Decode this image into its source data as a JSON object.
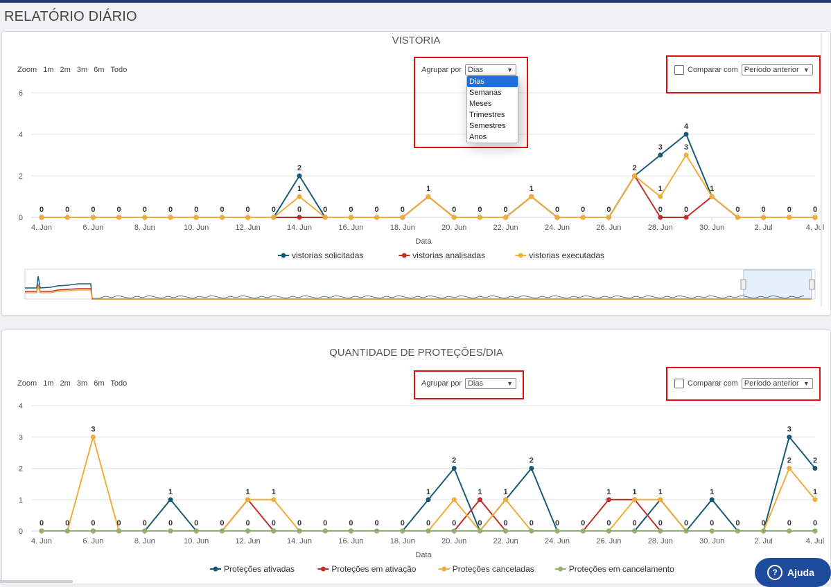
{
  "page": {
    "title": "RELATÓRIO DIÁRIO"
  },
  "colors": {
    "blue": "#175a75",
    "red": "#c0302b",
    "orange": "#f0ad3a",
    "green": "#8fb36f",
    "highlight": "#e01010",
    "help": "#1e4b9c"
  },
  "zoom": {
    "label": "Zoom",
    "buttons": [
      "1m",
      "2m",
      "3m",
      "6m",
      "Todo"
    ]
  },
  "group": {
    "label": "Agrupar por",
    "value": "Dias",
    "options": [
      "Dias",
      "Semanas",
      "Meses",
      "Trimestres",
      "Semestres",
      "Anos"
    ]
  },
  "compare": {
    "label": "Comparar com",
    "value": "Período anterior"
  },
  "help": {
    "label": "Ajuda",
    "icon": "question-circle-icon"
  },
  "chart_data": [
    {
      "type": "line",
      "title": "VISTORIA",
      "xlabel": "Data",
      "ylabel": "",
      "ylim": [
        0,
        6
      ],
      "yticks": [
        "0",
        "2",
        "4",
        "6"
      ],
      "xticks": [
        "4. Jun",
        "6. Jun",
        "8. Jun",
        "10. Jun",
        "12. Jun",
        "14. Jun",
        "16. Jun",
        "18. Jun",
        "20. Jun",
        "22. Jun",
        "24. Jun",
        "26. Jun",
        "28. Jun",
        "30. Jun",
        "2. Jul",
        "4. Jul"
      ],
      "x": [
        "4. Jun",
        "5. Jun",
        "6. Jun",
        "7. Jun",
        "8. Jun",
        "9. Jun",
        "10. Jun",
        "11. Jun",
        "12. Jun",
        "13. Jun",
        "14. Jun",
        "15. Jun",
        "16. Jun",
        "17. Jun",
        "18. Jun",
        "19. Jun",
        "20. Jun",
        "21. Jun",
        "22. Jun",
        "23. Jun",
        "24. Jun",
        "25. Jun",
        "26. Jun",
        "27. Jun",
        "28. Jun",
        "29. Jun",
        "30. Jun",
        "1. Jul",
        "2. Jul",
        "3. Jul",
        "4. Jul"
      ],
      "legend_position": "bottom-center",
      "grid": true,
      "navigator": true,
      "series": [
        {
          "name": "vistorias solicitadas",
          "color": "#175a75",
          "values": [
            0,
            0,
            0,
            0,
            0,
            0,
            0,
            0,
            0,
            0,
            2,
            0,
            0,
            0,
            0,
            1,
            0,
            0,
            0,
            1,
            0,
            0,
            0,
            2,
            3,
            4,
            1,
            0,
            0,
            0,
            0
          ]
        },
        {
          "name": "vistorias analisadas",
          "color": "#c0302b",
          "values": [
            0,
            0,
            0,
            0,
            0,
            0,
            0,
            0,
            0,
            0,
            0,
            0,
            0,
            0,
            0,
            1,
            0,
            0,
            0,
            1,
            0,
            0,
            0,
            2,
            0,
            0,
            1,
            0,
            0,
            0,
            0
          ]
        },
        {
          "name": "vistorias executadas",
          "color": "#f0ad3a",
          "values": [
            0,
            0,
            0,
            0,
            0,
            0,
            0,
            0,
            0,
            0,
            1,
            0,
            0,
            0,
            0,
            1,
            0,
            0,
            0,
            1,
            0,
            0,
            0,
            2,
            1,
            3,
            1,
            0,
            0,
            0,
            0
          ]
        }
      ],
      "data_labels": [
        "0",
        "0",
        "0",
        "0",
        "0",
        "0",
        "0",
        "0",
        "0",
        "0",
        "2",
        "0",
        "0",
        "0",
        "0",
        "1",
        "0",
        "0",
        "0",
        "1",
        "0",
        "0",
        "0",
        "2",
        "3",
        "4",
        "1",
        "0",
        "0",
        "0",
        "0"
      ],
      "data_labels_secondary": {
        "10": "1",
        "24": "1",
        "25": "3"
      },
      "data_labels_tertiary": {
        "10": "0",
        "24": "0",
        "25": "0"
      }
    },
    {
      "type": "line",
      "title": "QUANTIDADE DE PROTEÇÕES/DIA",
      "xlabel": "Data",
      "ylabel": "",
      "ylim": [
        0,
        4
      ],
      "yticks": [
        "0",
        "1",
        "2",
        "3",
        "4"
      ],
      "xticks": [
        "4. Jun",
        "6. Jun",
        "8. Jun",
        "10. Jun",
        "12. Jun",
        "14. Jun",
        "16. Jun",
        "18. Jun",
        "20. Jun",
        "22. Jun",
        "24. Jun",
        "26. Jun",
        "28. Jun",
        "30. Jun",
        "2. Jul",
        "4. Jul"
      ],
      "x": [
        "4. Jun",
        "5. Jun",
        "6. Jun",
        "7. Jun",
        "8. Jun",
        "9. Jun",
        "10. Jun",
        "11. Jun",
        "12. Jun",
        "13. Jun",
        "14. Jun",
        "15. Jun",
        "16. Jun",
        "17. Jun",
        "18. Jun",
        "19. Jun",
        "20. Jun",
        "21. Jun",
        "22. Jun",
        "23. Jun",
        "24. Jun",
        "25. Jun",
        "26. Jun",
        "27. Jun",
        "28. Jun",
        "29. Jun",
        "30. Jun",
        "1. Jul",
        "2. Jul",
        "3. Jul",
        "4. Jul"
      ],
      "legend_position": "bottom-center",
      "grid": true,
      "series": [
        {
          "name": "Proteções ativadas",
          "color": "#175a75",
          "values": [
            0,
            0,
            0,
            0,
            0,
            1,
            0,
            0,
            0,
            0,
            0,
            0,
            0,
            0,
            0,
            1,
            2,
            0,
            1,
            2,
            0,
            0,
            0,
            0,
            1,
            0,
            1,
            0,
            0,
            3,
            2
          ]
        },
        {
          "name": "Proteções em ativação",
          "color": "#c0302b",
          "values": [
            0,
            0,
            0,
            0,
            0,
            0,
            0,
            0,
            1,
            0,
            0,
            0,
            0,
            0,
            0,
            0,
            0,
            1,
            0,
            0,
            0,
            0,
            1,
            1,
            0,
            0,
            0,
            0,
            0,
            0,
            0
          ]
        },
        {
          "name": "Proteções canceladas",
          "color": "#f0ad3a",
          "values": [
            0,
            0,
            3,
            0,
            0,
            0,
            0,
            0,
            1,
            1,
            0,
            0,
            0,
            0,
            0,
            0,
            1,
            0,
            1,
            0,
            0,
            0,
            0,
            1,
            1,
            0,
            0,
            0,
            0,
            2,
            1
          ]
        },
        {
          "name": "Proteções em cancelamento",
          "color": "#8fb36f",
          "values": [
            0,
            0,
            0,
            0,
            0,
            0,
            0,
            0,
            0,
            0,
            0,
            0,
            0,
            0,
            0,
            0,
            0,
            0,
            0,
            0,
            0,
            0,
            0,
            0,
            0,
            0,
            0,
            0,
            0,
            0,
            0
          ]
        }
      ],
      "labels_top": {
        "2": "3",
        "5": "1",
        "8": "1",
        "9": "1",
        "15": "1",
        "16": "2",
        "17": "1",
        "18": "1",
        "19": "2",
        "22": "1",
        "23": "1",
        "24": "1",
        "26": "1",
        "29": "3",
        "30": "2"
      },
      "labels_second": {
        "29": "2",
        "30": "1"
      },
      "labels_zero": {
        "0": "0",
        "1": "0",
        "2": "0",
        "3": "0",
        "4": "0",
        "5": "0",
        "6": "0",
        "7": "0",
        "8": "0",
        "9": "0",
        "10": "0",
        "11": "0",
        "12": "0",
        "13": "0",
        "14": "0",
        "15": "0",
        "16": "0",
        "17": "0",
        "18": "0",
        "19": "0",
        "20": "0",
        "21": "0",
        "22": "0",
        "23": "0",
        "24": "0",
        "25": "0",
        "26": "0",
        "27": "0",
        "28": "0",
        "29": "0",
        "30": "0"
      }
    }
  ]
}
